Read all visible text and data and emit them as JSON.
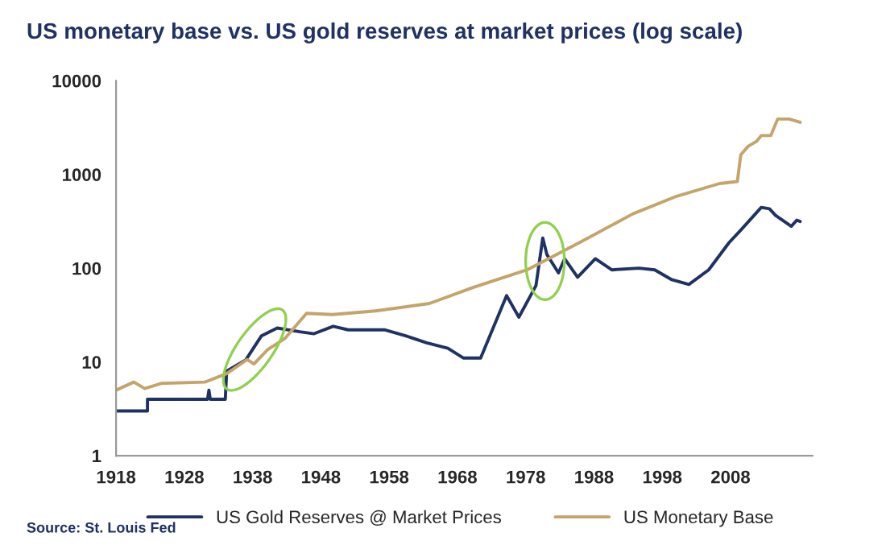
{
  "chart_data": {
    "type": "line",
    "title": "US monetary base vs. US gold reserves at market prices (log scale)",
    "log": true,
    "xlim": [
      1918,
      2020
    ],
    "xticks": [
      1918,
      1928,
      1938,
      1948,
      1958,
      1968,
      1978,
      1988,
      1998,
      2008
    ],
    "ylim": [
      1,
      10000
    ],
    "yticks": [
      1,
      10,
      100,
      1000,
      10000
    ],
    "grid": false,
    "legend": "bottom",
    "marker": "none",
    "line_style": "solid",
    "annotations": [
      "Source: St. Louis Fed"
    ],
    "series": [
      {
        "name": "US Gold Reserves @ Market Prices",
        "color": "#1f3264",
        "x": [
          1918,
          1922.6,
          1922.6,
          1931.4,
          1931.6,
          1931.8,
          1934,
          1934.2,
          1937,
          1939.3,
          1941.6,
          1944.9,
          1947,
          1949.8,
          1952,
          1957.3,
          1960.4,
          1963.5,
          1966.6,
          1968.9,
          1971.4,
          1975.2,
          1977,
          1979.5,
          1980.5,
          1981.1,
          1982.8,
          1983.7,
          1985.6,
          1988.2,
          1990.6,
          1994.6,
          1996.9,
          1999.3,
          2001.9,
          2004.8,
          2007.8,
          2009.5,
          2012.5,
          2013.7,
          2014.6,
          2016.9,
          2017.7,
          2018.2
        ],
        "values": [
          3,
          3,
          4,
          4,
          5,
          4,
          4,
          8,
          10.5,
          19,
          23,
          21,
          20,
          24,
          22,
          22,
          19,
          16,
          14,
          11,
          11,
          51,
          30,
          65,
          210,
          140,
          89,
          126,
          80,
          126,
          96,
          100,
          96,
          76,
          67,
          96,
          188,
          255,
          445,
          430,
          365,
          280,
          325,
          315
        ]
      },
      {
        "name": "US Monetary Base",
        "color": "#c4a46a",
        "x": [
          1918,
          1920.6,
          1922.2,
          1924.6,
          1931,
          1934.2,
          1937.2,
          1938.2,
          1940.2,
          1942.7,
          1945.9,
          1949.7,
          1956,
          1963.9,
          1970.2,
          1978.2,
          1985.9,
          1993.7,
          2000.1,
          2006.4,
          2009,
          2009.5,
          2010.6,
          2011.8,
          2012.5,
          2013.9,
          2014.9,
          2016.6,
          2018.2
        ],
        "values": [
          5,
          6.1,
          5.2,
          5.9,
          6.1,
          7.5,
          10.6,
          9.5,
          13.5,
          17.7,
          33,
          32,
          35,
          42,
          62,
          96,
          188,
          380,
          585,
          800,
          840,
          1620,
          2000,
          2250,
          2600,
          2600,
          3900,
          3900,
          3600
        ]
      }
    ]
  }
}
